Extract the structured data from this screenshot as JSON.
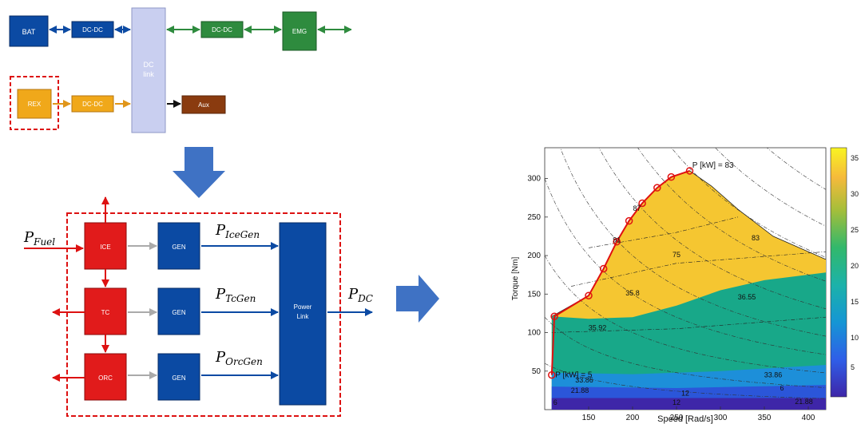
{
  "top_diagram": {
    "bat": "BAT",
    "dcdc_bat": "DC-DC",
    "dc_link_line1": "DC",
    "dc_link_line2": "link",
    "dcdc_emg": "DC-DC",
    "emg": "EMG",
    "rex": "REX",
    "dcdc_rex": "DC-DC",
    "aux": "Aux"
  },
  "bottom_diagram": {
    "fuel_label": "P",
    "fuel_sub": "Fuel",
    "ice": "ICE",
    "tc": "TC",
    "orc": "ORC",
    "gen1": "GEN",
    "gen2": "GEN",
    "gen3": "GEN",
    "p_icegen": "P",
    "p_icegen_sub": "IceGen",
    "p_tcgen": "P",
    "p_tcgen_sub": "TcGen",
    "p_orcgen": "P",
    "p_orcgen_sub": "OrcGen",
    "power_link_line1": "Power",
    "power_link_line2": "Link",
    "p_dc": "P",
    "p_dc_sub": "DC"
  },
  "colors": {
    "dark_blue": "#0b4aa3",
    "green": "#2e8b3e",
    "orange": "#f0a81a",
    "brown": "#8a3b0f",
    "red": "#e11b1b",
    "light_lavender": "#c9cff0",
    "big_arrow": "#3f72c4"
  },
  "chart_data": {
    "type": "contour",
    "xlabel": "Speed [Rad/s]",
    "ylabel": "Torque [Nm]",
    "xlim": [
      100,
      420
    ],
    "ylim": [
      0,
      340
    ],
    "x_ticks": [
      "150",
      "200",
      "250",
      "300",
      "350",
      "400"
    ],
    "y_ticks": [
      "50",
      "100",
      "150",
      "200",
      "250",
      "300"
    ],
    "colorbar_ticks": [
      "35",
      "30",
      "25",
      "20",
      "15",
      "10",
      "5"
    ],
    "contour_labels": [
      "6",
      "12",
      "21.88",
      "21.88",
      "12",
      "6",
      "33.86",
      "33.86",
      "35.92",
      "36.55",
      "35.8",
      "75",
      "83",
      "91",
      "87"
    ],
    "operating_line": {
      "x": [
        108,
        111,
        150,
        167,
        182,
        196,
        211,
        228,
        244,
        265
      ],
      "y": [
        45,
        121,
        148,
        183,
        218,
        245,
        268,
        288,
        302,
        310
      ]
    },
    "annotations": [
      "P [kW] = 83",
      "P [kW] = 5"
    ]
  }
}
